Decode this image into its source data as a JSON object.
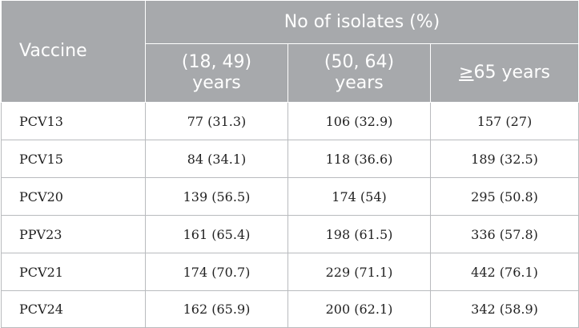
{
  "header": {
    "vaccine": "Vaccine",
    "group": "No of isolates (%)",
    "columns": [
      {
        "line1": "(18, 49)",
        "line2": "years"
      },
      {
        "line1": "(50, 64)",
        "line2": "years"
      },
      {
        "symbol": "≥",
        "text": "65 years"
      }
    ]
  },
  "rows": [
    {
      "vaccine": "PCV13",
      "values": [
        "77 (31.3)",
        "106 (32.9)",
        "157 (27)"
      ]
    },
    {
      "vaccine": "PCV15",
      "values": [
        "84 (34.1)",
        "118 (36.6)",
        "189 (32.5)"
      ]
    },
    {
      "vaccine": "PCV20",
      "values": [
        "139 (56.5)",
        "174 (54)",
        "295 (50.8)"
      ]
    },
    {
      "vaccine": "PPV23",
      "values": [
        "161 (65.4)",
        "198 (61.5)",
        "336 (57.8)"
      ]
    },
    {
      "vaccine": "PCV21",
      "values": [
        "174 (70.7)",
        "229 (71.1)",
        "442 (76.1)"
      ]
    },
    {
      "vaccine": "PCV24",
      "values": [
        "162 (65.9)",
        "200 (62.1)",
        "342 (58.9)"
      ]
    }
  ],
  "colors": {
    "header_bg": "#a7a9ac",
    "header_text": "#ffffff",
    "grid": "#b9bbbe"
  }
}
